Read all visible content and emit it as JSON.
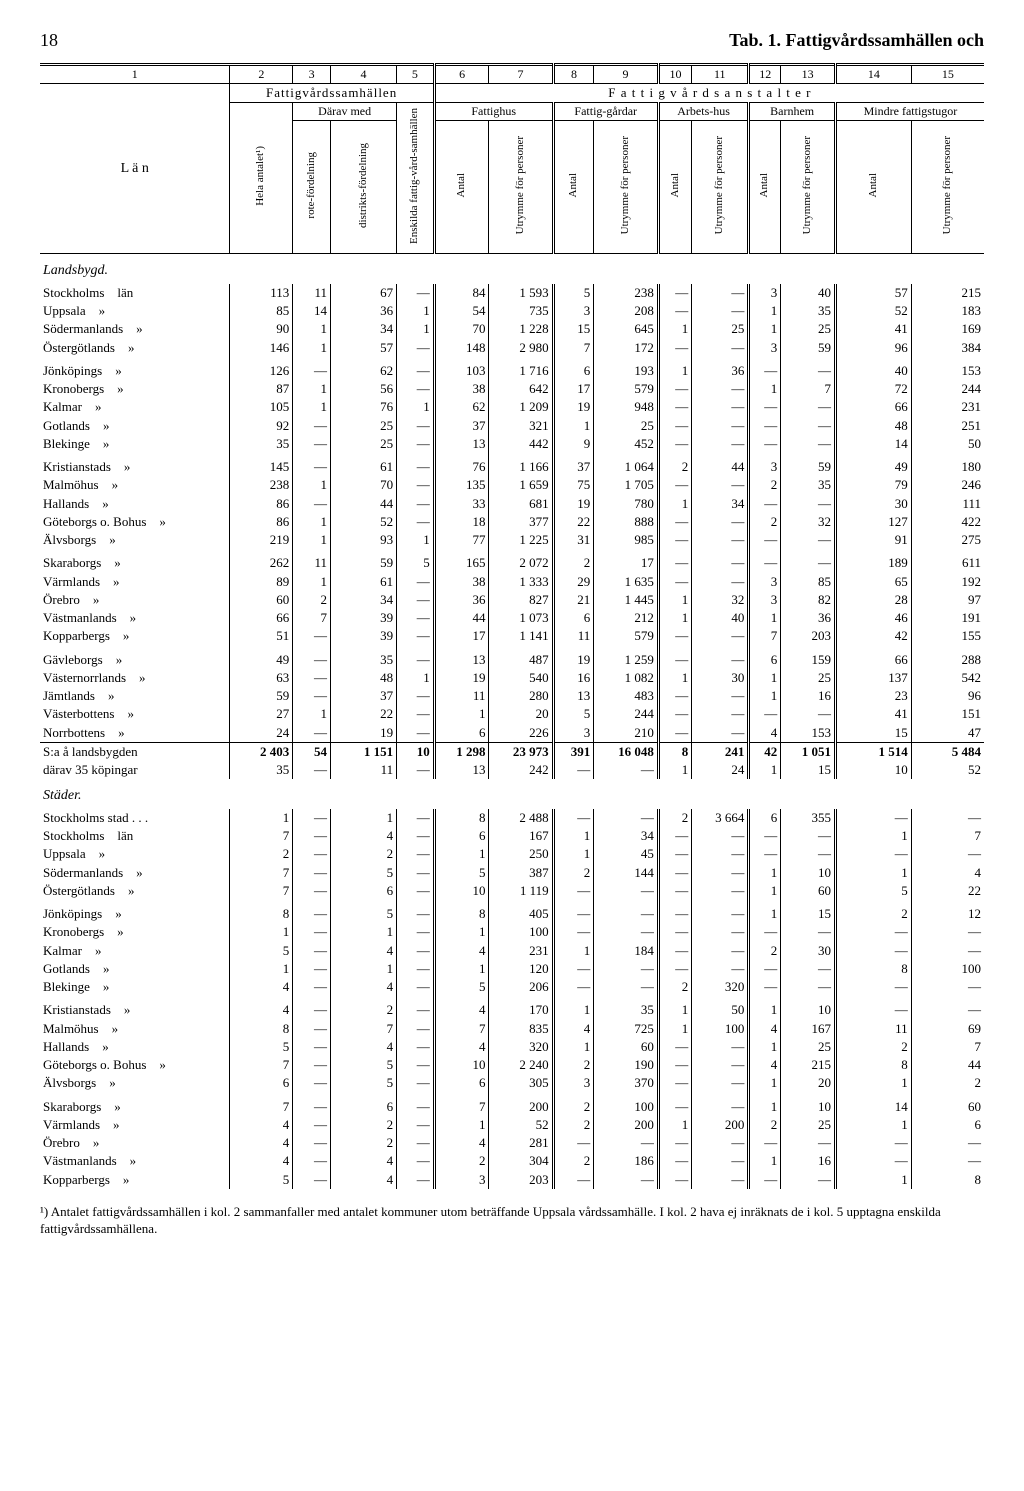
{
  "page_number": "18",
  "page_title": "Tab. 1.  Fattigvårdssamhällen och",
  "column_numbers": [
    "1",
    "2",
    "3",
    "4",
    "5",
    "6",
    "7",
    "8",
    "9",
    "10",
    "11",
    "12",
    "13",
    "14",
    "15"
  ],
  "header": {
    "lan": "L ä n",
    "group_left": "Fattigvårdssamhällen",
    "group_right": "F a t t i g v å r d s a n s t a l t e r",
    "hela": "Hela antalet¹)",
    "darav": "Därav med",
    "rote": "rote-fördelning",
    "distrikt": "distrikts-fördelning",
    "enskilda": "Enskilda fattig-vård-samhällen",
    "fattighus": "Fattighus",
    "fattiggardar": "Fattig-gårdar",
    "arbetshus": "Arbets-hus",
    "barnhem": "Barnhem",
    "mindre": "Mindre fattigstugor",
    "antal": "Antal",
    "utrymme": "Utrymme för personer"
  },
  "sections": [
    {
      "title": "Landsbygd.",
      "groups": [
        [
          {
            "label": "Stockholms",
            "suffix": "län",
            "c": [
              "113",
              "11",
              "67",
              "—",
              "84",
              "1 593",
              "5",
              "238",
              "—",
              "—",
              "3",
              "40",
              "57",
              "215"
            ]
          },
          {
            "label": "Uppsala",
            "suffix": "»",
            "c": [
              "85",
              "14",
              "36",
              "1",
              "54",
              "735",
              "3",
              "208",
              "—",
              "—",
              "1",
              "35",
              "52",
              "183"
            ]
          },
          {
            "label": "Södermanlands",
            "suffix": "»",
            "c": [
              "90",
              "1",
              "34",
              "1",
              "70",
              "1 228",
              "15",
              "645",
              "1",
              "25",
              "1",
              "25",
              "41",
              "169"
            ]
          },
          {
            "label": "Östergötlands",
            "suffix": "»",
            "c": [
              "146",
              "1",
              "57",
              "—",
              "148",
              "2 980",
              "7",
              "172",
              "—",
              "—",
              "3",
              "59",
              "96",
              "384"
            ]
          }
        ],
        [
          {
            "label": "Jönköpings",
            "suffix": "»",
            "c": [
              "126",
              "—",
              "62",
              "—",
              "103",
              "1 716",
              "6",
              "193",
              "1",
              "36",
              "—",
              "—",
              "40",
              "153"
            ]
          },
          {
            "label": "Kronobergs",
            "suffix": "»",
            "c": [
              "87",
              "1",
              "56",
              "—",
              "38",
              "642",
              "17",
              "579",
              "—",
              "—",
              "1",
              "7",
              "72",
              "244"
            ]
          },
          {
            "label": "Kalmar",
            "suffix": "»",
            "c": [
              "105",
              "1",
              "76",
              "1",
              "62",
              "1 209",
              "19",
              "948",
              "—",
              "—",
              "—",
              "—",
              "66",
              "231"
            ]
          },
          {
            "label": "Gotlands",
            "suffix": "»",
            "c": [
              "92",
              "—",
              "25",
              "—",
              "37",
              "321",
              "1",
              "25",
              "—",
              "—",
              "—",
              "—",
              "48",
              "251"
            ]
          },
          {
            "label": "Blekinge",
            "suffix": "»",
            "c": [
              "35",
              "—",
              "25",
              "—",
              "13",
              "442",
              "9",
              "452",
              "—",
              "—",
              "—",
              "—",
              "14",
              "50"
            ]
          }
        ],
        [
          {
            "label": "Kristianstads",
            "suffix": "»",
            "c": [
              "145",
              "—",
              "61",
              "—",
              "76",
              "1 166",
              "37",
              "1 064",
              "2",
              "44",
              "3",
              "59",
              "49",
              "180"
            ]
          },
          {
            "label": "Malmöhus",
            "suffix": "»",
            "c": [
              "238",
              "1",
              "70",
              "—",
              "135",
              "1 659",
              "75",
              "1 705",
              "—",
              "—",
              "2",
              "35",
              "79",
              "246"
            ]
          },
          {
            "label": "Hallands",
            "suffix": "»",
            "c": [
              "86",
              "—",
              "44",
              "—",
              "33",
              "681",
              "19",
              "780",
              "1",
              "34",
              "—",
              "—",
              "30",
              "111"
            ]
          },
          {
            "label": "Göteborgs o. Bohus",
            "suffix": "»",
            "c": [
              "86",
              "1",
              "52",
              "—",
              "18",
              "377",
              "22",
              "888",
              "—",
              "—",
              "2",
              "32",
              "127",
              "422"
            ]
          },
          {
            "label": "Älvsborgs",
            "suffix": "»",
            "c": [
              "219",
              "1",
              "93",
              "1",
              "77",
              "1 225",
              "31",
              "985",
              "—",
              "—",
              "—",
              "—",
              "91",
              "275"
            ]
          }
        ],
        [
          {
            "label": "Skaraborgs",
            "suffix": "»",
            "c": [
              "262",
              "11",
              "59",
              "5",
              "165",
              "2 072",
              "2",
              "17",
              "—",
              "—",
              "—",
              "—",
              "189",
              "611"
            ]
          },
          {
            "label": "Värmlands",
            "suffix": "»",
            "c": [
              "89",
              "1",
              "61",
              "—",
              "38",
              "1 333",
              "29",
              "1 635",
              "—",
              "—",
              "3",
              "85",
              "65",
              "192"
            ]
          },
          {
            "label": "Örebro",
            "suffix": "»",
            "c": [
              "60",
              "2",
              "34",
              "—",
              "36",
              "827",
              "21",
              "1 445",
              "1",
              "32",
              "3",
              "82",
              "28",
              "97"
            ]
          },
          {
            "label": "Västmanlands",
            "suffix": "»",
            "c": [
              "66",
              "7",
              "39",
              "—",
              "44",
              "1 073",
              "6",
              "212",
              "1",
              "40",
              "1",
              "36",
              "46",
              "191"
            ]
          },
          {
            "label": "Kopparbergs",
            "suffix": "»",
            "c": [
              "51",
              "—",
              "39",
              "—",
              "17",
              "1 141",
              "11",
              "579",
              "—",
              "—",
              "7",
              "203",
              "42",
              "155"
            ]
          }
        ],
        [
          {
            "label": "Gävleborgs",
            "suffix": "»",
            "c": [
              "49",
              "—",
              "35",
              "—",
              "13",
              "487",
              "19",
              "1 259",
              "—",
              "—",
              "6",
              "159",
              "66",
              "288"
            ]
          },
          {
            "label": "Västernorrlands",
            "suffix": "»",
            "c": [
              "63",
              "—",
              "48",
              "1",
              "19",
              "540",
              "16",
              "1 082",
              "1",
              "30",
              "1",
              "25",
              "137",
              "542"
            ]
          },
          {
            "label": "Jämtlands",
            "suffix": "»",
            "c": [
              "59",
              "—",
              "37",
              "—",
              "11",
              "280",
              "13",
              "483",
              "—",
              "—",
              "1",
              "16",
              "23",
              "96"
            ]
          },
          {
            "label": "Västerbottens",
            "suffix": "»",
            "c": [
              "27",
              "1",
              "22",
              "—",
              "1",
              "20",
              "5",
              "244",
              "—",
              "—",
              "—",
              "—",
              "41",
              "151"
            ]
          },
          {
            "label": "Norrbottens",
            "suffix": "»",
            "c": [
              "24",
              "—",
              "19",
              "—",
              "6",
              "226",
              "3",
              "210",
              "—",
              "—",
              "4",
              "153",
              "15",
              "47"
            ]
          }
        ]
      ],
      "sums": [
        {
          "label": "S:a å landsbygden",
          "c": [
            "2 403",
            "54",
            "1 151",
            "10",
            "1 298",
            "23 973",
            "391",
            "16 048",
            "8",
            "241",
            "42",
            "1 051",
            "1 514",
            "5 484"
          ]
        },
        {
          "label": "därav 35 köpingar",
          "c": [
            "35",
            "—",
            "11",
            "—",
            "13",
            "242",
            "—",
            "—",
            "1",
            "24",
            "1",
            "15",
            "10",
            "52"
          ]
        }
      ]
    },
    {
      "title": "Städer.",
      "groups": [
        [
          {
            "label": "Stockholms stad .  .  .",
            "suffix": "",
            "c": [
              "1",
              "—",
              "1",
              "—",
              "8",
              "2 488",
              "—",
              "—",
              "2",
              "3 664",
              "6",
              "355",
              "—",
              "—"
            ]
          },
          {
            "label": "Stockholms",
            "suffix": "län",
            "c": [
              "7",
              "—",
              "4",
              "—",
              "6",
              "167",
              "1",
              "34",
              "—",
              "—",
              "—",
              "—",
              "1",
              "7"
            ]
          },
          {
            "label": "Uppsala",
            "suffix": "»",
            "c": [
              "2",
              "—",
              "2",
              "—",
              "1",
              "250",
              "1",
              "45",
              "—",
              "—",
              "—",
              "—",
              "—",
              "—"
            ]
          },
          {
            "label": "Södermanlands",
            "suffix": "»",
            "c": [
              "7",
              "—",
              "5",
              "—",
              "5",
              "387",
              "2",
              "144",
              "—",
              "—",
              "1",
              "10",
              "1",
              "4"
            ]
          },
          {
            "label": "Östergötlands",
            "suffix": "»",
            "c": [
              "7",
              "—",
              "6",
              "—",
              "10",
              "1 119",
              "—",
              "—",
              "—",
              "—",
              "1",
              "60",
              "5",
              "22"
            ]
          }
        ],
        [
          {
            "label": "Jönköpings",
            "suffix": "»",
            "c": [
              "8",
              "—",
              "5",
              "—",
              "8",
              "405",
              "—",
              "—",
              "—",
              "—",
              "1",
              "15",
              "2",
              "12"
            ]
          },
          {
            "label": "Kronobergs",
            "suffix": "»",
            "c": [
              "1",
              "—",
              "1",
              "—",
              "1",
              "100",
              "—",
              "—",
              "—",
              "—",
              "—",
              "—",
              "—",
              "—"
            ]
          },
          {
            "label": "Kalmar",
            "suffix": "»",
            "c": [
              "5",
              "—",
              "4",
              "—",
              "4",
              "231",
              "1",
              "184",
              "—",
              "—",
              "2",
              "30",
              "—",
              "—"
            ]
          },
          {
            "label": "Gotlands",
            "suffix": "»",
            "c": [
              "1",
              "—",
              "1",
              "—",
              "1",
              "120",
              "—",
              "—",
              "—",
              "—",
              "—",
              "—",
              "8",
              "100"
            ]
          },
          {
            "label": "Blekinge",
            "suffix": "»",
            "c": [
              "4",
              "—",
              "4",
              "—",
              "5",
              "206",
              "—",
              "—",
              "2",
              "320",
              "—",
              "—",
              "—",
              "—"
            ]
          }
        ],
        [
          {
            "label": "Kristianstads",
            "suffix": "»",
            "c": [
              "4",
              "—",
              "2",
              "—",
              "4",
              "170",
              "1",
              "35",
              "1",
              "50",
              "1",
              "10",
              "—",
              "—"
            ]
          },
          {
            "label": "Malmöhus",
            "suffix": "»",
            "c": [
              "8",
              "—",
              "7",
              "—",
              "7",
              "835",
              "4",
              "725",
              "1",
              "100",
              "4",
              "167",
              "11",
              "69"
            ]
          },
          {
            "label": "Hallands",
            "suffix": "»",
            "c": [
              "5",
              "—",
              "4",
              "—",
              "4",
              "320",
              "1",
              "60",
              "—",
              "—",
              "1",
              "25",
              "2",
              "7"
            ]
          },
          {
            "label": "Göteborgs o. Bohus",
            "suffix": "»",
            "c": [
              "7",
              "—",
              "5",
              "—",
              "10",
              "2 240",
              "2",
              "190",
              "—",
              "—",
              "4",
              "215",
              "8",
              "44"
            ]
          },
          {
            "label": "Älvsborgs",
            "suffix": "»",
            "c": [
              "6",
              "—",
              "5",
              "—",
              "6",
              "305",
              "3",
              "370",
              "—",
              "—",
              "1",
              "20",
              "1",
              "2"
            ]
          }
        ],
        [
          {
            "label": "Skaraborgs",
            "suffix": "»",
            "c": [
              "7",
              "—",
              "6",
              "—",
              "7",
              "200",
              "2",
              "100",
              "—",
              "—",
              "1",
              "10",
              "14",
              "60"
            ]
          },
          {
            "label": "Värmlands",
            "suffix": "»",
            "c": [
              "4",
              "—",
              "2",
              "—",
              "1",
              "52",
              "2",
              "200",
              "1",
              "200",
              "2",
              "25",
              "1",
              "6"
            ]
          },
          {
            "label": "Örebro",
            "suffix": "»",
            "c": [
              "4",
              "—",
              "2",
              "—",
              "4",
              "281",
              "—",
              "—",
              "—",
              "—",
              "—",
              "—",
              "—",
              "—"
            ]
          },
          {
            "label": "Västmanlands",
            "suffix": "»",
            "c": [
              "4",
              "—",
              "4",
              "—",
              "2",
              "304",
              "2",
              "186",
              "—",
              "—",
              "1",
              "16",
              "—",
              "—"
            ]
          },
          {
            "label": "Kopparbergs",
            "suffix": "»",
            "c": [
              "5",
              "—",
              "4",
              "—",
              "3",
              "203",
              "—",
              "—",
              "—",
              "—",
              "—",
              "—",
              "1",
              "8"
            ]
          }
        ]
      ],
      "sums": []
    }
  ],
  "footnote": "¹) Antalet fattigvårdssamhällen i kol. 2 sammanfaller med antalet kommuner utom beträffande Uppsala vårdssamhälle.  I kol. 2 hava ej inräknats de i kol. 5 upptagna enskilda fattigvårdssamhällena."
}
